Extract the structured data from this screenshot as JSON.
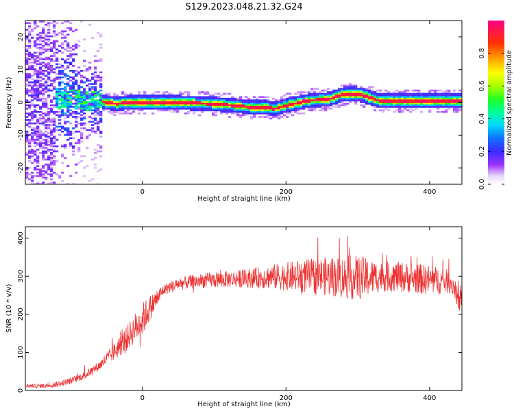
{
  "title": "S129.2023.048.21.32.G24",
  "chart_data": [
    {
      "type": "heatmap",
      "xlabel": "Height of straight line (km)",
      "ylabel": "Frequency (Hz)",
      "xlim": [
        -163,
        445
      ],
      "ylim": [
        -25,
        25
      ],
      "x_ticks": [
        0,
        200,
        400
      ],
      "y_ticks": [
        -20,
        -10,
        0,
        10,
        20
      ],
      "colorbar": {
        "label": "Normalized spectral amplitude",
        "range": [
          0,
          1
        ],
        "ticks": [
          "0.0",
          "0.2",
          "0.4",
          "0.6",
          "0.8"
        ],
        "tick_values": [
          0.0,
          0.2,
          0.4,
          0.6,
          0.8
        ]
      },
      "peak_frequency_track": {
        "x": [
          -130,
          -100,
          -70,
          -50,
          -35,
          -20,
          0,
          50,
          100,
          130,
          150,
          170,
          185,
          200,
          230,
          260,
          280,
          300,
          310,
          330,
          360,
          400,
          445
        ],
        "y": [
          0.5,
          1.0,
          0.5,
          0.0,
          -0.5,
          0.0,
          0.0,
          0.0,
          -0.5,
          -1.0,
          -1.5,
          -1.5,
          -2.0,
          -1.0,
          0.5,
          1.0,
          2.5,
          2.5,
          2.0,
          0.5,
          0.5,
          0.5,
          0.5
        ]
      }
    },
    {
      "type": "line",
      "xlabel": "Height of straight line (km)",
      "ylabel": "SNR (10 * v/v)",
      "xlim": [
        -163,
        445
      ],
      "ylim": [
        0,
        430
      ],
      "x_ticks": [
        0,
        200,
        400
      ],
      "y_ticks": [
        0,
        100,
        200,
        300,
        400
      ],
      "color": "#ee3333",
      "baseline": {
        "x": [
          -163,
          -140,
          -120,
          -100,
          -80,
          -60,
          -40,
          -20,
          -10,
          0,
          10,
          20,
          30,
          50,
          80,
          100,
          150,
          200,
          250,
          300,
          350,
          400,
          430,
          437,
          440,
          445
        ],
        "y": [
          12,
          12,
          16,
          25,
          40,
          65,
          100,
          140,
          165,
          185,
          215,
          240,
          265,
          280,
          288,
          290,
          295,
          300,
          300,
          295,
          300,
          290,
          285,
          260,
          225,
          245
        ]
      },
      "noise_amplitude": {
        "x": [
          -163,
          -60,
          0,
          30,
          150,
          230,
          300,
          330,
          400,
          445
        ],
        "y": [
          4,
          12,
          45,
          15,
          25,
          45,
          60,
          40,
          40,
          25
        ]
      }
    }
  ]
}
